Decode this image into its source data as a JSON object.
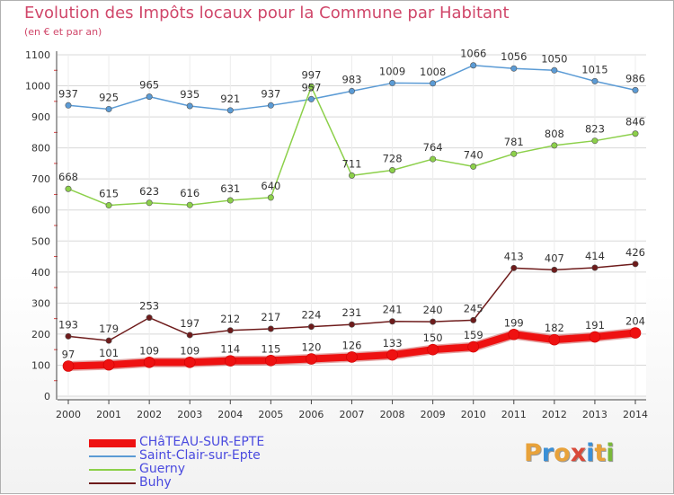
{
  "title": "Evolution des Impôts locaux pour la Commune par Habitant",
  "subtitle": "(en € et par an)",
  "logo": {
    "text": "Proxiti",
    "colors": [
      "#e8a23a",
      "#3a8fd6",
      "#e8a23a",
      "#d94a3a",
      "#3a8fd6",
      "#e8a23a",
      "#7ab83a"
    ]
  },
  "chart_data": {
    "type": "line",
    "x": [
      2000,
      2001,
      2002,
      2003,
      2004,
      2005,
      2006,
      2007,
      2008,
      2009,
      2010,
      2011,
      2012,
      2013,
      2014
    ],
    "ylim": [
      0,
      1100
    ],
    "yticks": [
      0,
      100,
      200,
      300,
      400,
      500,
      600,
      700,
      800,
      900,
      1000,
      1100
    ],
    "grid": true,
    "legend_position": "bottom-left",
    "series": [
      {
        "name": "CHâTEAU-SUR-EPTE",
        "color": "#ee1111",
        "values": [
          97,
          101,
          109,
          109,
          114,
          115,
          120,
          126,
          133,
          150,
          159,
          199,
          182,
          191,
          204
        ]
      },
      {
        "name": "Saint-Clair-sur-Epte",
        "color": "#5b9bd5",
        "values": [
          937,
          925,
          965,
          935,
          921,
          937,
          957,
          983,
          1009,
          1008,
          1066,
          1056,
          1050,
          1015,
          986
        ]
      },
      {
        "name": "Guerny",
        "color": "#8cd04a",
        "values": [
          668,
          615,
          623,
          616,
          631,
          640,
          997,
          711,
          728,
          764,
          740,
          781,
          808,
          823,
          846
        ]
      },
      {
        "name": "Buhy",
        "color": "#6e1b1b",
        "values": [
          193,
          179,
          253,
          197,
          212,
          217,
          224,
          231,
          241,
          240,
          245,
          413,
          407,
          414,
          426
        ]
      }
    ]
  }
}
